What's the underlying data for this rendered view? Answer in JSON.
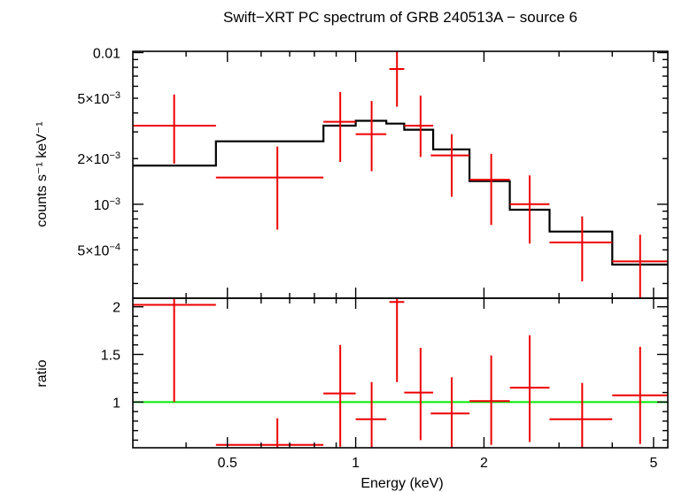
{
  "chart_data": {
    "type": "scatter",
    "title": "Swift−XRT PC spectrum of GRB 240513A − source 6",
    "xlabel": "Energy (keV)",
    "x_scale": "log",
    "xlim": [
      0.3,
      5.4
    ],
    "x_ticks": [
      {
        "value": 0.5,
        "label": "0.5"
      },
      {
        "value": 1,
        "label": "1"
      },
      {
        "value": 2,
        "label": "2"
      },
      {
        "value": 5,
        "label": "5"
      }
    ],
    "colors": {
      "data": "#ee0000",
      "model": "#000000",
      "unity": "#00ee00",
      "frame": "#000000"
    },
    "top_panel": {
      "ylabel": "counts s⁻¹ keV⁻¹",
      "y_scale": "log",
      "ylim": [
        0.00024,
        0.0102
      ],
      "y_ticks": [
        {
          "value": 0.01,
          "label": "0.01"
        },
        {
          "value": 0.005,
          "mant": "5×10",
          "exp": "−3"
        },
        {
          "value": 0.002,
          "mant": "2×10",
          "exp": "−3"
        },
        {
          "value": 0.001,
          "mant": "10",
          "exp": "−3"
        },
        {
          "value": 0.0005,
          "mant": "5×10",
          "exp": "−4"
        }
      ],
      "data": [
        {
          "xlo": 0.3,
          "xhi": 0.47,
          "x": 0.375,
          "y": 0.0033,
          "ylo": 0.00185,
          "yhi": 0.0053
        },
        {
          "xlo": 0.47,
          "xhi": 0.84,
          "x": 0.655,
          "y": 0.0015,
          "ylo": 0.00068,
          "yhi": 0.0024
        },
        {
          "xlo": 0.84,
          "xhi": 1.0,
          "x": 0.92,
          "y": 0.0035,
          "ylo": 0.0019,
          "yhi": 0.0055
        },
        {
          "xlo": 1.0,
          "xhi": 1.18,
          "x": 1.09,
          "y": 0.0029,
          "ylo": 0.00165,
          "yhi": 0.0048
        },
        {
          "xlo": 1.2,
          "xhi": 1.3,
          "x": 1.25,
          "y": 0.0078,
          "ylo": 0.0044,
          "yhi": 0.011
        },
        {
          "xlo": 1.3,
          "xhi": 1.52,
          "x": 1.42,
          "y": 0.0033,
          "ylo": 0.00205,
          "yhi": 0.0052
        },
        {
          "xlo": 1.5,
          "xhi": 1.85,
          "x": 1.68,
          "y": 0.0021,
          "ylo": 0.00112,
          "yhi": 0.0029
        },
        {
          "xlo": 1.85,
          "xhi": 2.3,
          "x": 2.08,
          "y": 0.00145,
          "ylo": 0.00073,
          "yhi": 0.00215
        },
        {
          "xlo": 2.3,
          "xhi": 2.85,
          "x": 2.56,
          "y": 0.001,
          "ylo": 0.00055,
          "yhi": 0.00155
        },
        {
          "xlo": 2.85,
          "xhi": 4.0,
          "x": 3.4,
          "y": 0.00056,
          "ylo": 0.00031,
          "yhi": 0.00083
        },
        {
          "xlo": 4.0,
          "xhi": 5.4,
          "x": 4.65,
          "y": 0.00042,
          "ylo": 0.00024,
          "yhi": 0.00063
        }
      ],
      "model": [
        {
          "xlo": 0.3,
          "xhi": 0.47,
          "y": 0.0018
        },
        {
          "xlo": 0.47,
          "xhi": 0.84,
          "y": 0.0026
        },
        {
          "xlo": 0.84,
          "xhi": 1.0,
          "y": 0.0033
        },
        {
          "xlo": 1.0,
          "xhi": 1.18,
          "y": 0.00355
        },
        {
          "xlo": 1.18,
          "xhi": 1.3,
          "y": 0.0034
        },
        {
          "xlo": 1.3,
          "xhi": 1.52,
          "y": 0.0031
        },
        {
          "xlo": 1.52,
          "xhi": 1.85,
          "y": 0.0023
        },
        {
          "xlo": 1.85,
          "xhi": 2.3,
          "y": 0.00142
        },
        {
          "xlo": 2.3,
          "xhi": 2.85,
          "y": 0.00092
        },
        {
          "xlo": 2.85,
          "xhi": 4.0,
          "y": 0.00066
        },
        {
          "xlo": 4.0,
          "xhi": 5.4,
          "y": 0.0004
        }
      ]
    },
    "bottom_panel": {
      "ylabel": "ratio",
      "y_scale": "linear",
      "ylim": [
        0.52,
        2.09
      ],
      "y_ticks": [
        {
          "value": 1,
          "label": "1"
        },
        {
          "value": 1.5,
          "label": "1.5"
        },
        {
          "value": 2,
          "label": "2"
        }
      ],
      "unity_line": 1,
      "data": [
        {
          "xlo": 0.3,
          "xhi": 0.47,
          "x": 0.375,
          "y": 2.02,
          "ylo": 1.0,
          "yhi": 2.09
        },
        {
          "xlo": 0.47,
          "xhi": 0.84,
          "x": 0.655,
          "y": 0.55,
          "ylo": 0.52,
          "yhi": 0.83
        },
        {
          "xlo": 0.84,
          "xhi": 1.0,
          "x": 0.92,
          "y": 1.09,
          "ylo": 0.53,
          "yhi": 1.6
        },
        {
          "xlo": 1.0,
          "xhi": 1.18,
          "x": 1.09,
          "y": 0.82,
          "ylo": 0.52,
          "yhi": 1.21
        },
        {
          "xlo": 1.2,
          "xhi": 1.3,
          "x": 1.25,
          "y": 2.05,
          "ylo": 1.21,
          "yhi": 2.09
        },
        {
          "xlo": 1.3,
          "xhi": 1.52,
          "x": 1.42,
          "y": 1.1,
          "ylo": 0.6,
          "yhi": 1.57
        },
        {
          "xlo": 1.5,
          "xhi": 1.85,
          "x": 1.68,
          "y": 0.88,
          "ylo": 0.52,
          "yhi": 1.26
        },
        {
          "xlo": 1.85,
          "xhi": 2.3,
          "x": 2.08,
          "y": 1.01,
          "ylo": 0.55,
          "yhi": 1.49
        },
        {
          "xlo": 2.3,
          "xhi": 2.85,
          "x": 2.56,
          "y": 1.15,
          "ylo": 0.58,
          "yhi": 1.7
        },
        {
          "xlo": 2.85,
          "xhi": 4.0,
          "x": 3.4,
          "y": 0.82,
          "ylo": 0.52,
          "yhi": 1.2
        },
        {
          "xlo": 4.0,
          "xhi": 5.4,
          "x": 4.65,
          "y": 1.07,
          "ylo": 0.56,
          "yhi": 1.58
        }
      ]
    }
  }
}
